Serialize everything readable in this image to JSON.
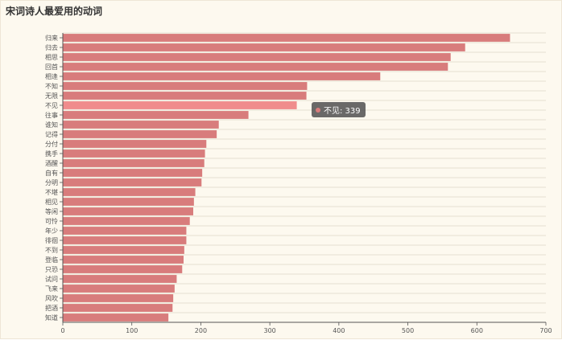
{
  "chart_data": {
    "type": "bar",
    "orientation": "horizontal",
    "title": "宋词诗人最爱用的动词",
    "categories": [
      "归来",
      "归去",
      "相思",
      "回首",
      "相逢",
      "不知",
      "无限",
      "不见",
      "往事",
      "谁知",
      "记得",
      "分付",
      "携手",
      "酒醒",
      "自有",
      "分明",
      "不堪",
      "相见",
      "等闲",
      "可怜",
      "年少",
      "徘徊",
      "不到",
      "登临",
      "只恐",
      "试问",
      "飞来",
      "风吹",
      "把酒",
      "知道"
    ],
    "values": [
      648,
      583,
      562,
      558,
      460,
      354,
      353,
      339,
      269,
      226,
      223,
      208,
      206,
      205,
      202,
      201,
      192,
      190,
      189,
      184,
      179,
      179,
      176,
      175,
      173,
      165,
      162,
      160,
      159,
      153
    ],
    "xlim": [
      0,
      700
    ],
    "xticks": [
      0,
      100,
      200,
      300,
      400,
      500,
      600,
      700
    ],
    "grid": true,
    "bar_color": "#d87c7c",
    "highlight_color": "#f08c8c",
    "highlight_index": 7
  },
  "tooltip": {
    "text": "不见: 339",
    "dot_color": "#d87c7c"
  }
}
